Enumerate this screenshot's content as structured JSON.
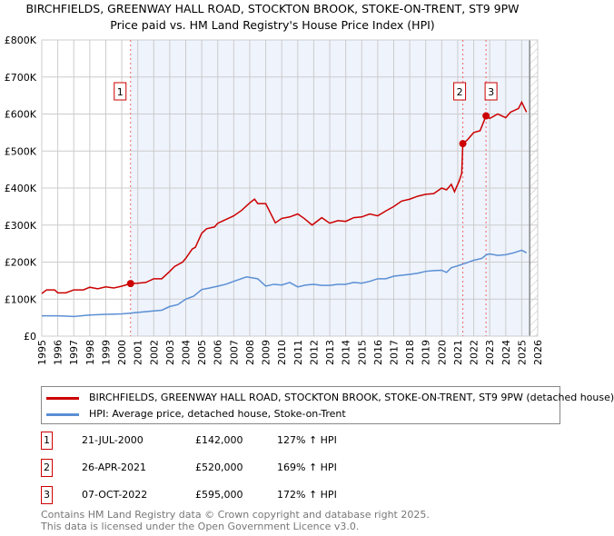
{
  "chart_data": {
    "type": "line",
    "title": "BIRCHFIELDS, GREENWAY HALL ROAD, STOCKTON BROOK, STOKE-ON-TRENT, ST9 9PW",
    "subtitle": "Price paid vs. HM Land Registry's House Price Index (HPI)",
    "xlim": [
      1995,
      2026
    ],
    "ylim": [
      0,
      800000
    ],
    "y_ticks": [
      {
        "v": 0,
        "label": "£0"
      },
      {
        "v": 100000,
        "label": "£100K"
      },
      {
        "v": 200000,
        "label": "£200K"
      },
      {
        "v": 300000,
        "label": "£300K"
      },
      {
        "v": 400000,
        "label": "£400K"
      },
      {
        "v": 500000,
        "label": "£500K"
      },
      {
        "v": 600000,
        "label": "£600K"
      },
      {
        "v": 700000,
        "label": "£700K"
      },
      {
        "v": 800000,
        "label": "£800K"
      }
    ],
    "x_ticks": [
      "1995",
      "1996",
      "1997",
      "1998",
      "1999",
      "2000",
      "2001",
      "2002",
      "2003",
      "2004",
      "2005",
      "2006",
      "2007",
      "2008",
      "2009",
      "2010",
      "2011",
      "2012",
      "2013",
      "2014",
      "2015",
      "2016",
      "2017",
      "2018",
      "2019",
      "2020",
      "2021",
      "2022",
      "2023",
      "2024",
      "2025",
      "2026"
    ],
    "shaded_from": 2000.55,
    "data_end": 2025.5,
    "series": [
      {
        "name": "BIRCHFIELDS, GREENWAY HALL ROAD, STOCKTON BROOK, STOKE-ON-TRENT, ST9 9PW (detached house)",
        "color": "#cc0000",
        "points": [
          [
            1995,
            115
          ],
          [
            1995.3,
            125
          ],
          [
            1995.8,
            125
          ],
          [
            1996,
            117
          ],
          [
            1996.5,
            117
          ],
          [
            1997,
            125
          ],
          [
            1997.6,
            125
          ],
          [
            1998,
            132
          ],
          [
            1998.5,
            128
          ],
          [
            1999,
            133
          ],
          [
            1999.5,
            130
          ],
          [
            2000,
            135
          ],
          [
            2000.55,
            142
          ],
          [
            2001,
            143
          ],
          [
            2001.5,
            145
          ],
          [
            2002,
            155
          ],
          [
            2002.5,
            155
          ],
          [
            2003,
            175
          ],
          [
            2003.3,
            188
          ],
          [
            2003.8,
            200
          ],
          [
            2004,
            210
          ],
          [
            2004.4,
            235
          ],
          [
            2004.6,
            240
          ],
          [
            2005,
            278
          ],
          [
            2005.3,
            290
          ],
          [
            2005.8,
            295
          ],
          [
            2006,
            305
          ],
          [
            2006.5,
            315
          ],
          [
            2007,
            325
          ],
          [
            2007.5,
            340
          ],
          [
            2008,
            360
          ],
          [
            2008.3,
            370
          ],
          [
            2008.5,
            358
          ],
          [
            2009,
            358
          ],
          [
            2009.6,
            306
          ],
          [
            2010,
            318
          ],
          [
            2010.5,
            322
          ],
          [
            2011,
            330
          ],
          [
            2011.4,
            318
          ],
          [
            2011.9,
            300
          ],
          [
            2012.5,
            320
          ],
          [
            2013,
            305
          ],
          [
            2013.5,
            312
          ],
          [
            2014,
            310
          ],
          [
            2014.5,
            320
          ],
          [
            2015,
            322
          ],
          [
            2015.5,
            330
          ],
          [
            2016,
            325
          ],
          [
            2016.5,
            338
          ],
          [
            2017,
            350
          ],
          [
            2017.5,
            365
          ],
          [
            2018,
            370
          ],
          [
            2018.5,
            378
          ],
          [
            2019,
            383
          ],
          [
            2019.5,
            385
          ],
          [
            2020,
            400
          ],
          [
            2020.3,
            395
          ],
          [
            2020.6,
            410
          ],
          [
            2020.8,
            390
          ],
          [
            2021.1,
            420
          ],
          [
            2021.25,
            440
          ],
          [
            2021.32,
            520
          ],
          [
            2021.6,
            530
          ],
          [
            2022,
            550
          ],
          [
            2022.4,
            555
          ],
          [
            2022.77,
            595
          ],
          [
            2023,
            588
          ],
          [
            2023.5,
            600
          ],
          [
            2024,
            590
          ],
          [
            2024.3,
            605
          ],
          [
            2024.8,
            615
          ],
          [
            2025,
            632
          ],
          [
            2025.3,
            605
          ]
        ]
      },
      {
        "name": "HPI: Average price, detached house, Stoke-on-Trent",
        "color": "#5b8fd4",
        "points": [
          [
            1995,
            55
          ],
          [
            1996,
            55
          ],
          [
            1997,
            53
          ],
          [
            1998,
            57
          ],
          [
            1999,
            59
          ],
          [
            2000,
            60
          ],
          [
            2000.5,
            62
          ],
          [
            2001,
            64
          ],
          [
            2002,
            68
          ],
          [
            2002.5,
            70
          ],
          [
            2003,
            80
          ],
          [
            2003.5,
            85
          ],
          [
            2004,
            100
          ],
          [
            2004.5,
            108
          ],
          [
            2005,
            126
          ],
          [
            2005.5,
            130
          ],
          [
            2006,
            135
          ],
          [
            2006.5,
            140
          ],
          [
            2007,
            148
          ],
          [
            2007.8,
            160
          ],
          [
            2008.5,
            155
          ],
          [
            2009,
            135
          ],
          [
            2009.5,
            140
          ],
          [
            2010,
            138
          ],
          [
            2010.5,
            145
          ],
          [
            2011,
            133
          ],
          [
            2011.5,
            138
          ],
          [
            2012,
            140
          ],
          [
            2012.5,
            137
          ],
          [
            2013,
            137
          ],
          [
            2013.5,
            140
          ],
          [
            2014,
            140
          ],
          [
            2014.5,
            145
          ],
          [
            2015,
            143
          ],
          [
            2015.5,
            148
          ],
          [
            2016,
            155
          ],
          [
            2016.5,
            155
          ],
          [
            2017,
            162
          ],
          [
            2018,
            167
          ],
          [
            2018.5,
            170
          ],
          [
            2019,
            175
          ],
          [
            2019.5,
            177
          ],
          [
            2020,
            178
          ],
          [
            2020.3,
            172
          ],
          [
            2020.6,
            185
          ],
          [
            2021,
            190
          ],
          [
            2021.5,
            197
          ],
          [
            2022,
            205
          ],
          [
            2022.5,
            210
          ],
          [
            2022.8,
            220
          ],
          [
            2023,
            222
          ],
          [
            2023.5,
            218
          ],
          [
            2024,
            220
          ],
          [
            2024.5,
            225
          ],
          [
            2025,
            232
          ],
          [
            2025.3,
            225
          ]
        ]
      }
    ],
    "sales": [
      {
        "n": "1",
        "x": 2000.55,
        "price": 142000,
        "date": "21-JUL-2000",
        "price_label": "£142,000",
        "hpi": "127% ↑ HPI"
      },
      {
        "n": "2",
        "x": 2021.32,
        "price": 520000,
        "date": "26-APR-2021",
        "price_label": "£520,000",
        "hpi": "169% ↑ HPI"
      },
      {
        "n": "3",
        "x": 2022.77,
        "price": 595000,
        "date": "07-OCT-2022",
        "price_label": "£595,000",
        "hpi": "172% ↑ HPI"
      }
    ]
  },
  "legend": {
    "property": "BIRCHFIELDS, GREENWAY HALL ROAD, STOCKTON BROOK, STOKE-ON-TRENT, ST9 9PW (detached house)",
    "hpi": "HPI: Average price, detached house, Stoke-on-Trent"
  },
  "footer": {
    "line1": "Contains HM Land Registry data © Crown copyright and database right 2025.",
    "line2": "This data is licensed under the Open Government Licence v3.0."
  }
}
